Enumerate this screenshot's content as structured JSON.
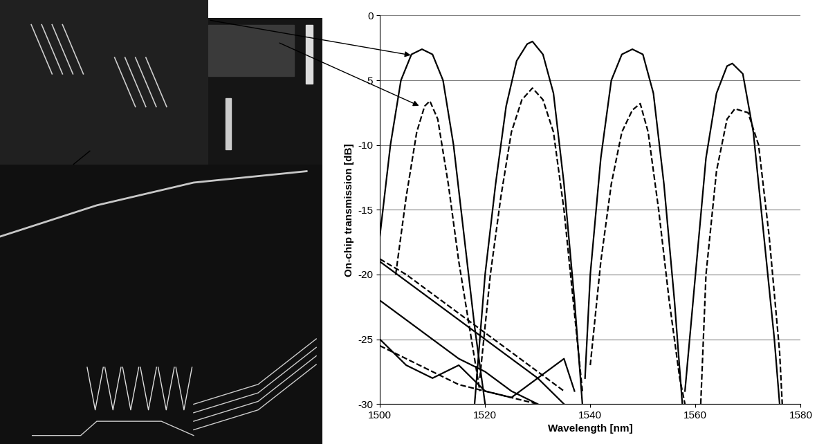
{
  "chart_data": {
    "type": "line",
    "x_label": "Wavelength [nm]",
    "y_label": "On-chip transmission [dB]",
    "xlim": [
      1500,
      1580
    ],
    "xticks": [
      1500,
      1520,
      1540,
      1560,
      1580
    ],
    "ylim": [
      -30,
      0
    ],
    "yticks": [
      -30,
      -25,
      -20,
      -15,
      -10,
      -5,
      0
    ],
    "grid": true,
    "series": [
      {
        "color": "#000000",
        "line_style": "solid",
        "x": [
          1500,
          1502,
          1504,
          1506,
          1508,
          1510,
          1512,
          1514,
          1516,
          1518,
          1520
        ],
        "values": [
          -17,
          -10,
          -5,
          -3,
          -2.6,
          -3,
          -5,
          -10,
          -17,
          -24,
          -30
        ]
      },
      {
        "color": "#000000",
        "line_style": "solid",
        "x": [
          1518,
          1520,
          1522,
          1524,
          1526,
          1528,
          1529,
          1531,
          1533,
          1535,
          1537,
          1538.5
        ],
        "values": [
          -30,
          -20,
          -13,
          -7,
          -3.5,
          -2.2,
          -2,
          -3,
          -6,
          -13,
          -22,
          -30
        ]
      },
      {
        "color": "#000000",
        "line_style": "solid",
        "x": [
          1539,
          1540,
          1542,
          1544,
          1546,
          1548,
          1550,
          1552,
          1554,
          1556,
          1557.5
        ],
        "values": [
          -28,
          -20,
          -11,
          -5,
          -3,
          -2.6,
          -3,
          -6,
          -13,
          -22,
          -30
        ]
      },
      {
        "color": "#000000",
        "line_style": "solid",
        "x": [
          1558,
          1560,
          1562,
          1564,
          1566,
          1567,
          1569,
          1571,
          1573,
          1575,
          1576
        ],
        "values": [
          -29,
          -20,
          -11,
          -6,
          -3.9,
          -3.7,
          -4.5,
          -9,
          -17,
          -25,
          -30
        ]
      },
      {
        "color": "#000000",
        "line_style": "dashed",
        "x": [
          1503,
          1505,
          1507,
          1508.5,
          1509.5,
          1511,
          1513,
          1515,
          1517,
          1519
        ],
        "values": [
          -20,
          -14,
          -9,
          -7,
          -6.6,
          -8,
          -13,
          -19,
          -24,
          -29
        ]
      },
      {
        "color": "#000000",
        "line_style": "dashed",
        "x": [
          1519,
          1521,
          1523,
          1525,
          1527,
          1529,
          1531,
          1533,
          1535,
          1537,
          1538.5
        ],
        "values": [
          -28,
          -20,
          -14,
          -9,
          -6.5,
          -5.6,
          -6.5,
          -9,
          -15,
          -23,
          -29
        ]
      },
      {
        "color": "#000000",
        "line_style": "dashed",
        "x": [
          1540,
          1542,
          1544,
          1546,
          1548,
          1549.5,
          1551,
          1553,
          1555,
          1557,
          1558
        ],
        "values": [
          -27,
          -19,
          -13,
          -9,
          -7.3,
          -6.8,
          -9,
          -15,
          -22,
          -28,
          -30
        ]
      },
      {
        "color": "#000000",
        "line_style": "dashed",
        "x": [
          1561,
          1562,
          1564,
          1566,
          1567.5,
          1570,
          1572,
          1574,
          1576,
          1576.5
        ],
        "values": [
          -30,
          -20,
          -12,
          -8,
          -7.2,
          -7.5,
          -10,
          -17,
          -26,
          -30
        ]
      },
      {
        "color": "#000000",
        "line_style": "solid",
        "x": [
          1500,
          1505,
          1510,
          1515,
          1520,
          1525,
          1530,
          1535
        ],
        "values": [
          -19,
          -20.5,
          -22,
          -23.5,
          -25,
          -26.5,
          -28,
          -30
        ]
      },
      {
        "color": "#000000",
        "line_style": "solid",
        "x": [
          1500,
          1505,
          1510,
          1515,
          1520,
          1525,
          1530
        ],
        "values": [
          -22,
          -23.5,
          -25,
          -26.5,
          -27.5,
          -29,
          -30
        ]
      },
      {
        "color": "#000000",
        "line_style": "solid",
        "x": [
          1500,
          1505,
          1510,
          1515,
          1520,
          1525,
          1530,
          1535,
          1537
        ],
        "values": [
          -25,
          -27,
          -28,
          -27,
          -29,
          -29.5,
          -28,
          -26.5,
          -29
        ]
      },
      {
        "color": "#000000",
        "line_style": "dashed",
        "x": [
          1500,
          1505,
          1510,
          1515,
          1520,
          1525,
          1530,
          1535
        ],
        "values": [
          -18.8,
          -20,
          -21.5,
          -23,
          -24.5,
          -26,
          -27.5,
          -29
        ]
      },
      {
        "color": "#000000",
        "line_style": "dashed",
        "x": [
          1500,
          1505,
          1510,
          1515,
          1520,
          1525,
          1530
        ],
        "values": [
          -25.5,
          -26.5,
          -27.5,
          -28.5,
          -29,
          -29.5,
          -30
        ]
      }
    ]
  }
}
